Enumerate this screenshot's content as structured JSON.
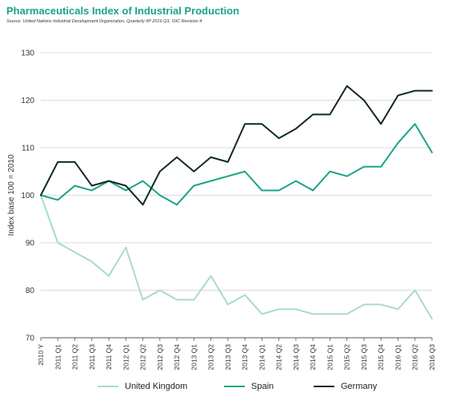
{
  "chart_data": {
    "type": "line",
    "title": "Pharmaceuticals Index of Industrial Production",
    "subtitle": "Source: United Nations Industrial Development Organization, Quarterly IIP 2016 Q3, ISIC Revision 4",
    "xlabel": "",
    "ylabel": "Index base 100 = 2010",
    "ylim": [
      70,
      130
    ],
    "yticks": [
      "70",
      "80",
      "90",
      "100",
      "110",
      "120",
      "130"
    ],
    "grid": true,
    "legend_position": "bottom",
    "categories": [
      "2010 Y",
      "2011 Q1",
      "2011 Q2",
      "2011 Q3",
      "2011 Q4",
      "2012 Q1",
      "2012 Q2",
      "2012 Q3",
      "2012 Q4",
      "2013 Q1",
      "2013 Q2",
      "2013 Q3",
      "2013 Q4",
      "2014 Q1",
      "2014 Q2",
      "2014 Q3",
      "2014 Q4",
      "2015 Q1",
      "2015 Q2",
      "2015 Q3",
      "2015 Q4",
      "2016 Q1",
      "2016 Q2",
      "2016 Q3"
    ],
    "series": [
      {
        "name": "United Kingdom",
        "color": "#a8dcc8",
        "values": [
          100,
          90,
          88,
          86,
          83,
          89,
          78,
          80,
          78,
          78,
          83,
          77,
          79,
          75,
          76,
          76,
          75,
          75,
          75,
          77,
          77,
          76,
          80,
          74
        ]
      },
      {
        "name": "Spain",
        "color": "#1aa387",
        "values": [
          100,
          99,
          102,
          101,
          103,
          101,
          103,
          100,
          98,
          102,
          103,
          104,
          105,
          101,
          101,
          103,
          101,
          105,
          104,
          106,
          106,
          111,
          115,
          109
        ]
      },
      {
        "name": "Germany",
        "color": "#0f2a22",
        "values": [
          100,
          107,
          107,
          102,
          103,
          102,
          98,
          105,
          108,
          105,
          108,
          107,
          115,
          115,
          112,
          114,
          117,
          117,
          123,
          120,
          115,
          121,
          122,
          122
        ]
      }
    ]
  }
}
